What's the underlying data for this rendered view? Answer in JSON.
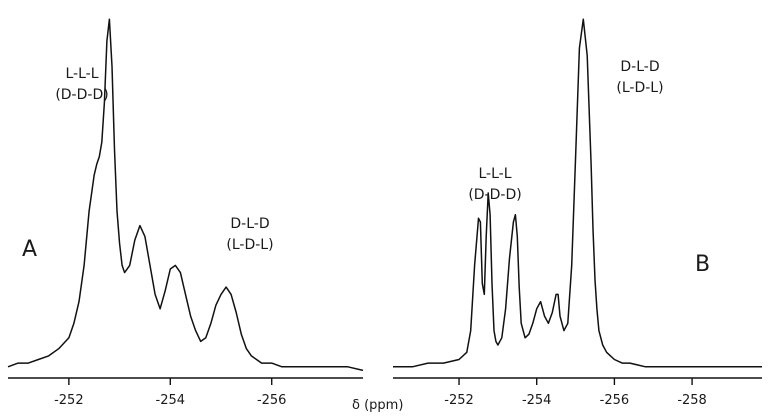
{
  "chart_data": [
    {
      "type": "line",
      "panel": "A",
      "xlabel": "δ (ppm)",
      "xlim": [
        -250.8,
        -257.8
      ],
      "ylim": [
        0,
        1
      ],
      "ticks": [
        -252,
        -254,
        -256
      ],
      "tick_labels": [
        "-252",
        "-254",
        "-256"
      ],
      "annotations": [
        {
          "id": "lll",
          "lines": [
            "L-L-L",
            "(D-D-D)"
          ]
        },
        {
          "id": "dld",
          "lines": [
            "D-L-D",
            "(L-D-L)"
          ]
        }
      ],
      "series": [
        {
          "x": [
            -250.8,
            -251.0,
            -251.2,
            -251.4,
            -251.6,
            -251.8,
            -252.0,
            -252.1,
            -252.2,
            -252.3,
            -252.4,
            -252.5,
            -252.55,
            -252.6,
            -252.65,
            -252.7,
            -252.75,
            -252.8,
            -252.85,
            -252.9,
            -252.95,
            -253.0,
            -253.05,
            -253.1,
            -253.2,
            -253.3,
            -253.4,
            -253.5,
            -253.6,
            -253.7,
            -253.8,
            -253.9,
            -254.0,
            -254.1,
            -254.2,
            -254.3,
            -254.4,
            -254.5,
            -254.6,
            -254.7,
            -254.8,
            -254.9,
            -255.0,
            -255.1,
            -255.2,
            -255.3,
            -255.4,
            -255.5,
            -255.6,
            -255.7,
            -255.8,
            -256.0,
            -256.2,
            -256.5,
            -257.0,
            -257.5,
            -257.8
          ],
          "y": [
            0.02,
            0.03,
            0.03,
            0.04,
            0.05,
            0.07,
            0.1,
            0.14,
            0.2,
            0.3,
            0.45,
            0.55,
            0.58,
            0.6,
            0.64,
            0.75,
            0.92,
            0.98,
            0.85,
            0.62,
            0.45,
            0.36,
            0.3,
            0.28,
            0.3,
            0.37,
            0.41,
            0.38,
            0.3,
            0.22,
            0.18,
            0.23,
            0.29,
            0.3,
            0.28,
            0.22,
            0.16,
            0.12,
            0.09,
            0.1,
            0.14,
            0.19,
            0.22,
            0.24,
            0.22,
            0.17,
            0.11,
            0.07,
            0.05,
            0.04,
            0.03,
            0.03,
            0.02,
            0.02,
            0.02,
            0.02,
            0.01
          ]
        }
      ]
    },
    {
      "type": "line",
      "panel": "B",
      "xlabel": "",
      "xlim": [
        -250.3,
        -259.8
      ],
      "ylim": [
        0,
        1
      ],
      "ticks": [
        -252,
        -254,
        -256,
        -258
      ],
      "tick_labels": [
        "-252",
        "-254",
        "-256",
        "-258"
      ],
      "annotations": [
        {
          "id": "lll",
          "lines": [
            "L-L-L",
            "(D-D-D)"
          ]
        },
        {
          "id": "dld",
          "lines": [
            "D-L-D",
            "(L-D-L)"
          ]
        }
      ],
      "series": [
        {
          "x": [
            -250.3,
            -250.8,
            -251.2,
            -251.6,
            -252.0,
            -252.2,
            -252.3,
            -252.4,
            -252.5,
            -252.55,
            -252.6,
            -252.65,
            -252.7,
            -252.75,
            -252.8,
            -252.85,
            -252.9,
            -252.95,
            -253.0,
            -253.1,
            -253.2,
            -253.3,
            -253.4,
            -253.45,
            -253.5,
            -253.55,
            -253.6,
            -253.7,
            -253.8,
            -253.9,
            -254.0,
            -254.1,
            -254.2,
            -254.3,
            -254.4,
            -254.5,
            -254.55,
            -254.6,
            -254.7,
            -254.8,
            -254.9,
            -255.0,
            -255.1,
            -255.2,
            -255.3,
            -255.4,
            -255.45,
            -255.5,
            -255.55,
            -255.6,
            -255.7,
            -255.8,
            -255.9,
            -256.0,
            -256.2,
            -256.4,
            -256.8,
            -257.2,
            -257.8,
            -258.4,
            -259.0,
            -259.8
          ],
          "y": [
            0.02,
            0.02,
            0.03,
            0.03,
            0.04,
            0.06,
            0.12,
            0.3,
            0.43,
            0.42,
            0.25,
            0.22,
            0.38,
            0.5,
            0.44,
            0.25,
            0.12,
            0.09,
            0.08,
            0.1,
            0.18,
            0.32,
            0.42,
            0.44,
            0.38,
            0.24,
            0.14,
            0.1,
            0.11,
            0.14,
            0.18,
            0.2,
            0.16,
            0.14,
            0.17,
            0.22,
            0.22,
            0.16,
            0.12,
            0.14,
            0.3,
            0.6,
            0.9,
            0.98,
            0.88,
            0.58,
            0.4,
            0.26,
            0.18,
            0.12,
            0.08,
            0.06,
            0.05,
            0.04,
            0.03,
            0.03,
            0.02,
            0.02,
            0.02,
            0.02,
            0.02,
            0.02
          ]
        }
      ]
    }
  ]
}
